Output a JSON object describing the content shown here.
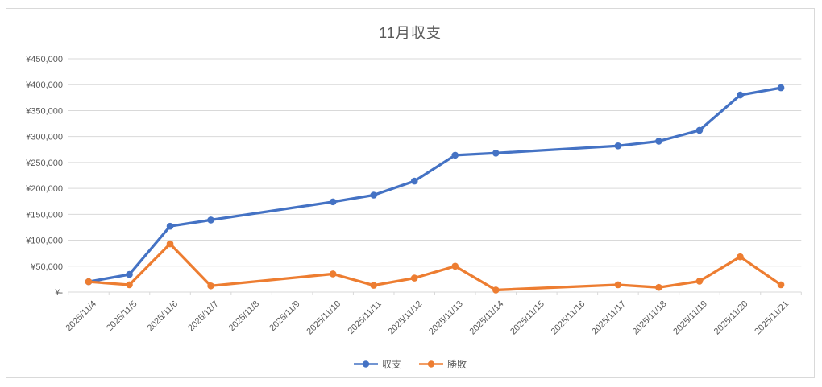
{
  "chart_data": {
    "type": "line",
    "title": "11月収支",
    "categories": [
      "2025/11/4",
      "2025/11/5",
      "2025/11/6",
      "2025/11/7",
      "2025/11/8",
      "2025/11/9",
      "2025/11/10",
      "2025/11/11",
      "2025/11/12",
      "2025/11/13",
      "2025/11/14",
      "2025/11/15",
      "2025/11/16",
      "2025/11/17",
      "2025/11/18",
      "2025/11/19",
      "2025/11/20",
      "2025/11/21"
    ],
    "series": [
      {
        "name": "収支",
        "color": "#4472C4",
        "values": [
          20000,
          34000,
          127000,
          139000,
          null,
          null,
          174000,
          187000,
          214000,
          264000,
          268000,
          null,
          null,
          282000,
          291000,
          312000,
          380000,
          394000
        ]
      },
      {
        "name": "勝敗",
        "color": "#ED7D31",
        "values": [
          20000,
          14000,
          93000,
          12000,
          null,
          null,
          35000,
          13000,
          27000,
          50000,
          4000,
          null,
          null,
          14000,
          9000,
          21000,
          68000,
          14000
        ]
      }
    ],
    "ylim": [
      0,
      450000
    ],
    "ytick_step": 50000,
    "ytick_labels": [
      "¥-",
      "¥50,000",
      "¥100,000",
      "¥150,000",
      "¥200,000",
      "¥250,000",
      "¥300,000",
      "¥350,000",
      "¥400,000",
      "¥450,000"
    ],
    "xlabel": "",
    "ylabel": "",
    "grid": true,
    "legend_position": "bottom",
    "missing_points_note": "gaps connected by straight segments",
    "styles": {
      "title_color": "#595959",
      "axis_label_color": "#595959",
      "gridline_color": "#D9D9D9",
      "axis_line_color": "#D9D9D9",
      "background": "#FFFFFF",
      "border_color": "#D9D9D9"
    }
  }
}
